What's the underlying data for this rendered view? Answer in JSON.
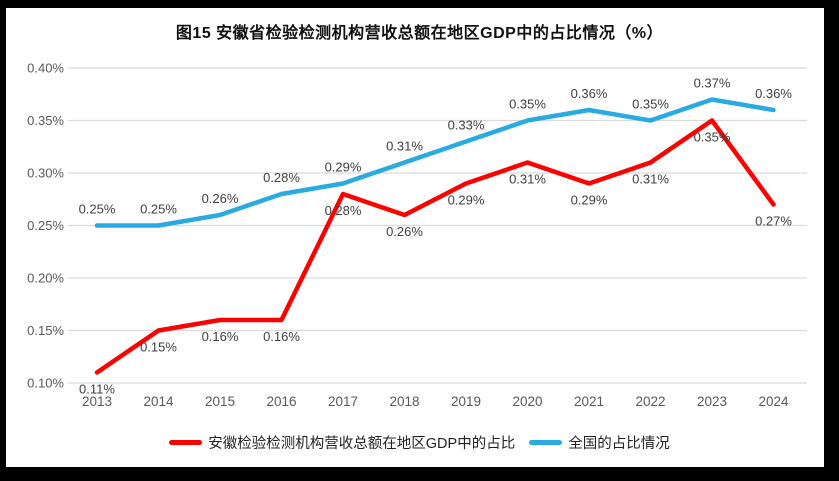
{
  "window": {
    "background": "#FFFFFF",
    "frame_color": "#000000"
  },
  "chart_data": {
    "type": "line",
    "title": "图15 安徽省检验检测机构营收总额在地区GDP中的占比情况（%）",
    "categories": [
      "2013",
      "2014",
      "2015",
      "2016",
      "2017",
      "2018",
      "2019",
      "2020",
      "2021",
      "2022",
      "2023",
      "2024"
    ],
    "series": [
      {
        "id": "anhui-gdp-share",
        "name": "安徽检验检测机构营收总额在地区GDP中的占比",
        "color": "#FF0000",
        "values": [
          0.11,
          0.15,
          0.16,
          0.16,
          0.28,
          0.26,
          0.29,
          0.31,
          0.29,
          0.31,
          0.35,
          0.27
        ],
        "data_labels": [
          "0.11%",
          "0.15%",
          "0.16%",
          "0.16%",
          "0.28%",
          "0.26%",
          "0.29%",
          "0.31%",
          "0.29%",
          "0.31%",
          "0.35%",
          "0.27%"
        ],
        "label_position": "below"
      },
      {
        "id": "national-share",
        "name": "全国的占比情况",
        "color": "#29ABE2",
        "values": [
          0.25,
          0.25,
          0.26,
          0.28,
          0.29,
          0.31,
          0.33,
          0.35,
          0.36,
          0.35,
          0.37,
          0.36
        ],
        "data_labels": [
          "0.25%",
          "0.25%",
          "0.26%",
          "0.28%",
          "0.29%",
          "0.31%",
          "0.33%",
          "0.35%",
          "0.36%",
          "0.35%",
          "0.37%",
          "0.36%"
        ],
        "label_position": "above"
      }
    ],
    "ylim": [
      0.1,
      0.4
    ],
    "ytick_values": [
      0.4,
      0.35,
      0.3,
      0.25,
      0.2,
      0.15,
      0.1
    ],
    "ytick_labels": [
      "0.40%",
      "0.35%",
      "0.30%",
      "0.25%",
      "0.20%",
      "0.15%",
      "0.10%"
    ],
    "grid": true,
    "legend_position": "bottom",
    "gridline_color": "#D9D9D9",
    "tick_label_color": "#595959",
    "data_label_color": "#404040"
  }
}
